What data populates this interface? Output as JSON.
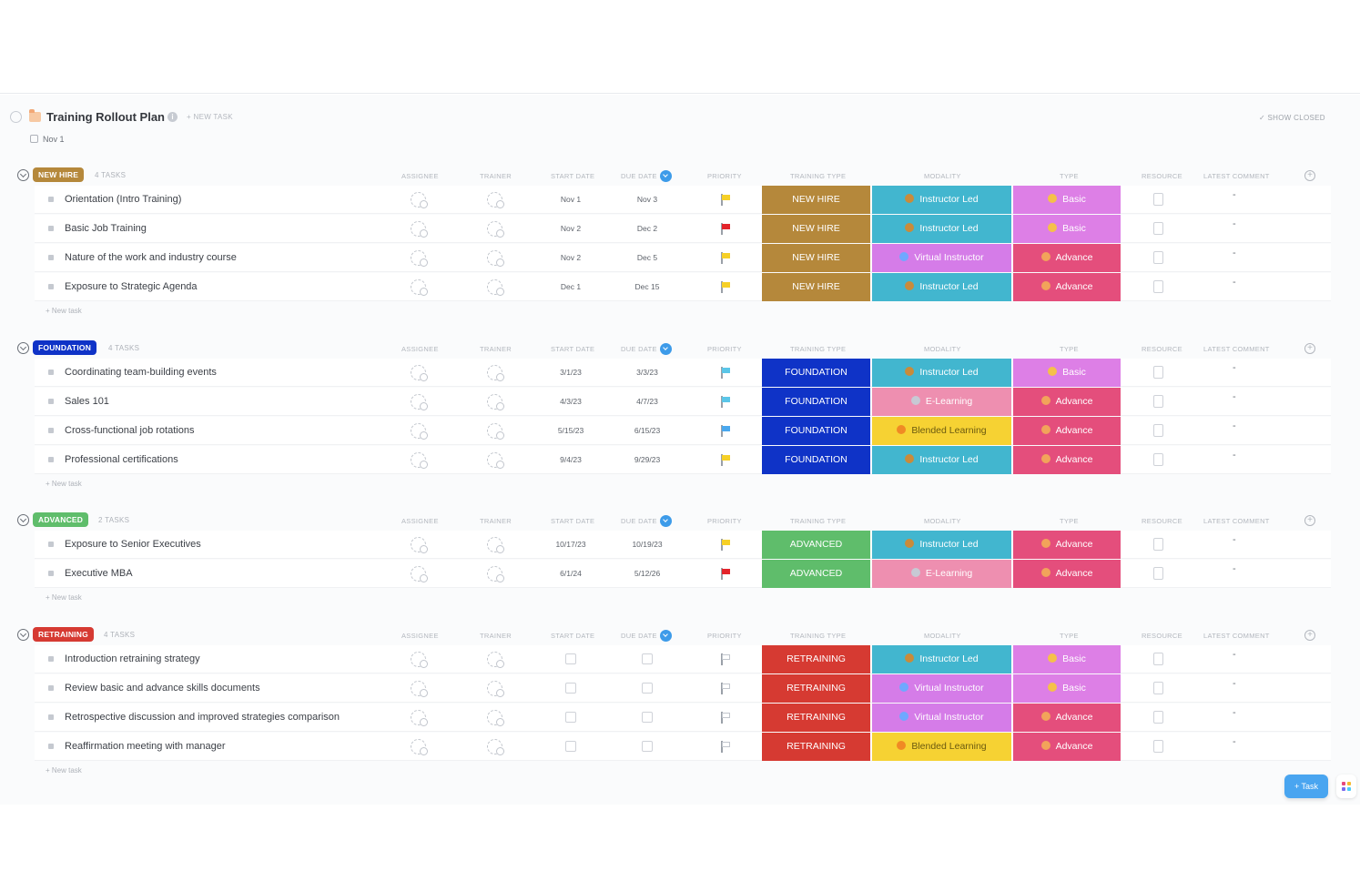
{
  "header": {
    "title": "Training Rollout Plan",
    "info_glyph": "i",
    "new_task": "+ NEW TASK",
    "date": "Nov 1",
    "show_closed": "✓ SHOW CLOSED"
  },
  "columns": {
    "assignee": "ASSIGNEE",
    "trainer": "TRAINER",
    "start_date": "START DATE",
    "due_date": "DUE DATE",
    "priority": "PRIORITY",
    "training_type": "TRAINING TYPE",
    "modality": "MODALITY",
    "type": "TYPE",
    "resource": "RESOURCE",
    "latest_comment": "LATEST COMMENT"
  },
  "new_task_row": "+ New task",
  "add_column_glyph": "+",
  "empty_comment": "-",
  "colors": {
    "new_hire": "#b5883b",
    "foundation": "#0f33c7",
    "advanced": "#5fbd6b",
    "retraining": "#d63a32",
    "instructor_led": "#42b6cf",
    "virtual_instructor": "#d57ce8",
    "e_learning": "#ee8fb0",
    "blended_learning": "#f6d233",
    "basic": "#dd7fe6",
    "advance": "#e44e7c",
    "flag_yellow": "#f6d027",
    "flag_red": "#e3242b",
    "flag_cyan": "#5bc6e8",
    "flag_blue": "#4aa8ee"
  },
  "groups": [
    {
      "label": "NEW HIRE",
      "count": "4 TASKS",
      "tasks": [
        {
          "name": "Orientation (Intro Training)",
          "start": "Nov 1",
          "due": "Nov 3",
          "priority": "yellow",
          "training_type": "NEW HIRE",
          "modality": "Instructor Led",
          "type": "Basic"
        },
        {
          "name": "Basic Job Training",
          "start": "Nov 2",
          "due": "Dec 2",
          "priority": "red",
          "training_type": "NEW HIRE",
          "modality": "Instructor Led",
          "type": "Basic"
        },
        {
          "name": "Nature of the work and industry course",
          "start": "Nov 2",
          "due": "Dec 5",
          "priority": "yellow",
          "training_type": "NEW HIRE",
          "modality": "Virtual Instructor",
          "type": "Advance"
        },
        {
          "name": "Exposure to Strategic Agenda",
          "start": "Dec 1",
          "due": "Dec 15",
          "priority": "yellow",
          "training_type": "NEW HIRE",
          "modality": "Instructor Led",
          "type": "Advance"
        }
      ]
    },
    {
      "label": "FOUNDATION",
      "count": "4 TASKS",
      "tasks": [
        {
          "name": "Coordinating team-building events",
          "start": "3/1/23",
          "due": "3/3/23",
          "priority": "cyan",
          "training_type": "FOUNDATION",
          "modality": "Instructor Led",
          "type": "Basic"
        },
        {
          "name": "Sales 101",
          "start": "4/3/23",
          "due": "4/7/23",
          "priority": "cyan",
          "training_type": "FOUNDATION",
          "modality": "E-Learning",
          "type": "Advance"
        },
        {
          "name": "Cross-functional job rotations",
          "start": "5/15/23",
          "due": "6/15/23",
          "priority": "blue",
          "training_type": "FOUNDATION",
          "modality": "Blended Learning",
          "type": "Advance"
        },
        {
          "name": "Professional certifications",
          "start": "9/4/23",
          "due": "9/29/23",
          "priority": "yellow",
          "training_type": "FOUNDATION",
          "modality": "Instructor Led",
          "type": "Advance"
        }
      ]
    },
    {
      "label": "ADVANCED",
      "count": "2 TASKS",
      "tasks": [
        {
          "name": "Exposure to Senior Executives",
          "start": "10/17/23",
          "due": "10/19/23",
          "priority": "yellow",
          "training_type": "ADVANCED",
          "modality": "Instructor Led",
          "type": "Advance"
        },
        {
          "name": "Executive MBA",
          "start": "6/1/24",
          "due": "5/12/26",
          "priority": "red",
          "training_type": "ADVANCED",
          "modality": "E-Learning",
          "type": "Advance"
        }
      ]
    },
    {
      "label": "RETRAINING",
      "count": "4 TASKS",
      "tasks": [
        {
          "name": "Introduction retraining strategy",
          "start": "",
          "due": "",
          "priority": "none",
          "training_type": "RETRAINING",
          "modality": "Instructor Led",
          "type": "Basic"
        },
        {
          "name": "Review basic and advance skills documents",
          "start": "",
          "due": "",
          "priority": "none",
          "training_type": "RETRAINING",
          "modality": "Virtual Instructor",
          "type": "Basic"
        },
        {
          "name": "Retrospective discussion and improved strategies comparison",
          "start": "",
          "due": "",
          "priority": "none",
          "training_type": "RETRAINING",
          "modality": "Virtual Instructor",
          "type": "Advance"
        },
        {
          "name": "Reaffirmation meeting with manager",
          "start": "",
          "due": "",
          "priority": "none",
          "training_type": "RETRAINING",
          "modality": "Blended Learning",
          "type": "Advance"
        }
      ]
    }
  ],
  "buttons": {
    "task": "+ Task"
  }
}
